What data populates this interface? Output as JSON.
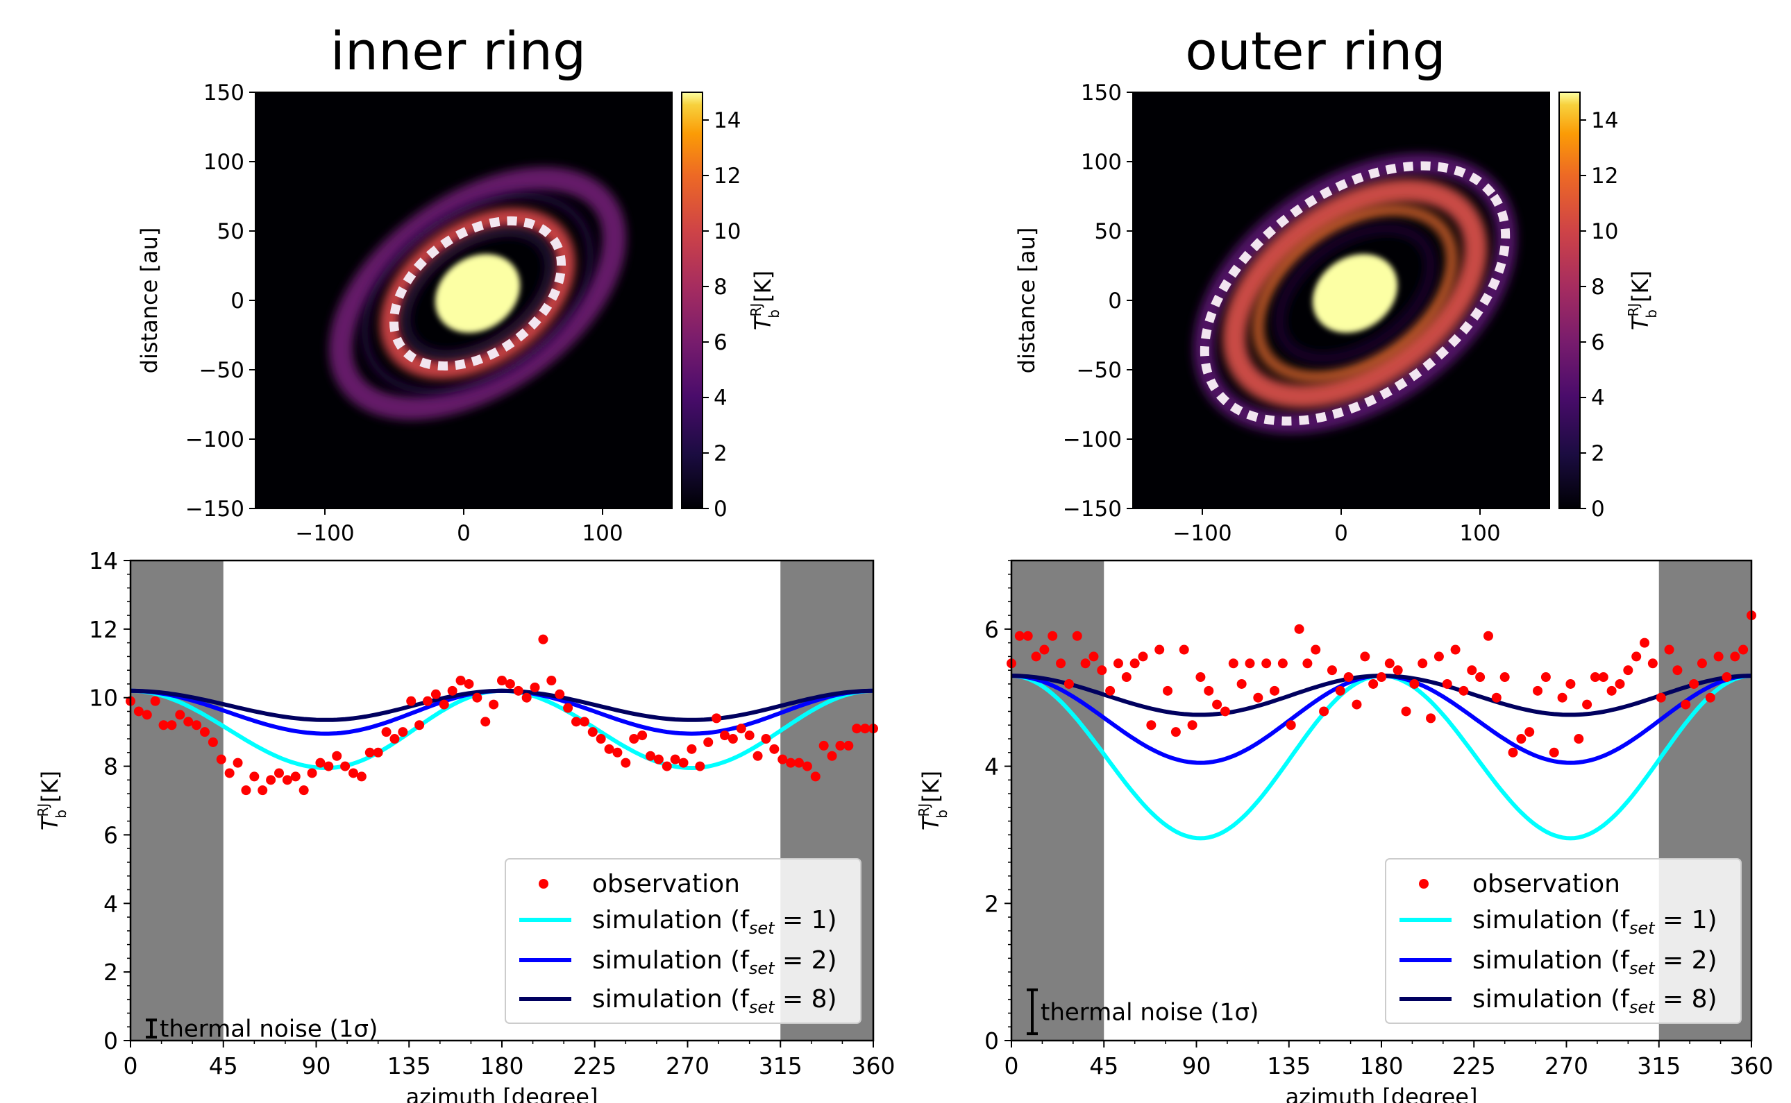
{
  "chart_data": [
    {
      "type": "heatmap",
      "title": "inner ring",
      "ylabel": "distance [au]",
      "xlim": [
        -150,
        150
      ],
      "ylim": [
        -150,
        150
      ],
      "xticks": [
        "−100",
        "0",
        "100"
      ],
      "yticks": [
        "150",
        "100",
        "50",
        "0",
        "−50",
        "−100",
        "−150"
      ],
      "colorbar": {
        "label_main": "T",
        "label_sup": "RJ",
        "label_sub": "b",
        "label_unit": " [K]",
        "range": [
          0,
          15
        ],
        "ticks": [
          "0",
          "2",
          "4",
          "6",
          "8",
          "10",
          "12",
          "14"
        ],
        "colormap": "inferno"
      },
      "ring_marker": "white dotted ellipse on inner ring"
    },
    {
      "type": "heatmap",
      "title": "outer ring",
      "ylabel": "distance [au]",
      "xlim": [
        -150,
        150
      ],
      "ylim": [
        -150,
        150
      ],
      "xticks": [
        "−100",
        "0",
        "100"
      ],
      "yticks": [
        "150",
        "100",
        "50",
        "0",
        "−50",
        "−100",
        "−150"
      ],
      "colorbar": {
        "label_main": "T",
        "label_sup": "RJ",
        "label_sub": "b",
        "label_unit": " [K]",
        "range": [
          0,
          15
        ],
        "ticks": [
          "0",
          "2",
          "4",
          "6",
          "8",
          "10",
          "12",
          "14"
        ],
        "colormap": "inferno"
      },
      "ring_marker": "white dotted ellipse on outer ring"
    },
    {
      "type": "scatter",
      "xlabel": "azimuth [degree]",
      "ylabel_main": "T",
      "ylabel_sup": "RJ",
      "ylabel_sub": "b",
      "ylabel_unit": " [K]",
      "xlim": [
        0,
        360
      ],
      "ylim": [
        0,
        14
      ],
      "xticks": [
        "0",
        "45",
        "90",
        "135",
        "180",
        "225",
        "270",
        "315",
        "360"
      ],
      "yticks": [
        "0",
        "2",
        "4",
        "6",
        "8",
        "10",
        "12",
        "14"
      ],
      "shaded_ranges": [
        [
          0,
          45
        ],
        [
          315,
          360
        ]
      ],
      "noise_label": "thermal noise (1σ)",
      "noise_halfwidth": 0.25,
      "observation": {
        "name": "observation",
        "x": [
          0,
          4,
          8,
          12,
          16,
          20,
          24,
          28,
          32,
          36,
          40,
          44,
          48,
          52,
          56,
          60,
          64,
          68,
          72,
          76,
          80,
          84,
          88,
          92,
          96,
          100,
          104,
          108,
          112,
          116,
          120,
          124,
          128,
          132,
          136,
          140,
          144,
          148,
          152,
          156,
          160,
          164,
          168,
          172,
          176,
          180,
          184,
          188,
          192,
          196,
          200,
          204,
          208,
          212,
          216,
          220,
          224,
          228,
          232,
          236,
          240,
          244,
          248,
          252,
          256,
          260,
          264,
          268,
          272,
          276,
          280,
          284,
          288,
          292,
          296,
          300,
          304,
          308,
          312,
          316,
          320,
          324,
          328,
          332,
          336,
          340,
          344,
          348,
          352,
          356,
          360
        ],
        "y": [
          9.9,
          9.6,
          9.5,
          9.9,
          9.2,
          9.2,
          9.5,
          9.3,
          9.2,
          9.0,
          8.7,
          8.2,
          7.8,
          8.1,
          7.3,
          7.7,
          7.3,
          7.6,
          7.8,
          7.6,
          7.7,
          7.3,
          7.8,
          8.1,
          8.0,
          8.3,
          8.0,
          7.8,
          7.7,
          8.4,
          8.4,
          9.0,
          8.8,
          9.0,
          9.9,
          9.2,
          9.9,
          10.1,
          9.8,
          10.2,
          10.5,
          10.4,
          10.0,
          9.3,
          9.8,
          10.5,
          10.4,
          10.2,
          10.0,
          10.3,
          11.7,
          10.5,
          10.1,
          9.7,
          9.3,
          9.3,
          9.0,
          8.8,
          8.5,
          8.4,
          8.1,
          8.8,
          8.9,
          8.3,
          8.2,
          8.0,
          8.2,
          8.1,
          8.5,
          8.0,
          8.7,
          9.4,
          8.9,
          8.8,
          9.1,
          8.9,
          8.3,
          8.8,
          8.5,
          8.2,
          8.1,
          8.1,
          8.0,
          7.7,
          8.6,
          8.3,
          8.6,
          8.6,
          9.1,
          9.1,
          9.1
        ]
      },
      "series": [
        {
          "name": "simulation (f",
          "sub": "set",
          "eq": " = 1)",
          "color": "#00ffff",
          "peak": 10.2,
          "trough": 7.95,
          "trough_pos": 95,
          "trough_pos2": 272
        },
        {
          "name": "simulation (f",
          "sub": "set",
          "eq": " = 2)",
          "color": "#0000ff",
          "peak": 10.2,
          "trough": 8.95,
          "trough_pos": 95,
          "trough_pos2": 272
        },
        {
          "name": "simulation (f",
          "sub": "set",
          "eq": " = 8)",
          "color": "#00005f",
          "peak": 10.2,
          "trough": 9.35,
          "trough_pos": 95,
          "trough_pos2": 272
        }
      ],
      "legend_position": "lower-right"
    },
    {
      "type": "scatter",
      "xlabel": "azimuth [degree]",
      "ylabel_main": "T",
      "ylabel_sup": "RJ",
      "ylabel_sub": "b",
      "ylabel_unit": " [K]",
      "xlim": [
        0,
        360
      ],
      "ylim": [
        0,
        7
      ],
      "xticks": [
        "0",
        "45",
        "90",
        "135",
        "180",
        "225",
        "270",
        "315",
        "360"
      ],
      "yticks": [
        "0",
        "2",
        "4",
        "6"
      ],
      "shaded_ranges": [
        [
          0,
          45
        ],
        [
          315,
          360
        ]
      ],
      "noise_label": "thermal noise (1σ)",
      "noise_halfwidth": 0.32,
      "observation": {
        "name": "observation",
        "x": [
          0,
          4,
          8,
          12,
          16,
          20,
          24,
          28,
          32,
          36,
          40,
          44,
          48,
          52,
          56,
          60,
          64,
          68,
          72,
          76,
          80,
          84,
          88,
          92,
          96,
          100,
          104,
          108,
          112,
          116,
          120,
          124,
          128,
          132,
          136,
          140,
          144,
          148,
          152,
          156,
          160,
          164,
          168,
          172,
          176,
          180,
          184,
          188,
          192,
          196,
          200,
          204,
          208,
          212,
          216,
          220,
          224,
          228,
          232,
          236,
          240,
          244,
          248,
          252,
          256,
          260,
          264,
          268,
          272,
          276,
          280,
          284,
          288,
          292,
          296,
          300,
          304,
          308,
          312,
          316,
          320,
          324,
          328,
          332,
          336,
          340,
          344,
          348,
          352,
          356,
          360
        ],
        "y": [
          5.5,
          5.9,
          5.9,
          5.6,
          5.7,
          5.9,
          5.5,
          5.2,
          5.9,
          5.5,
          5.6,
          5.4,
          5.1,
          5.5,
          5.3,
          5.5,
          5.6,
          4.6,
          5.7,
          5.1,
          4.5,
          5.7,
          4.6,
          5.3,
          5.1,
          4.9,
          4.8,
          5.5,
          5.2,
          5.5,
          5.0,
          5.5,
          5.1,
          5.5,
          4.6,
          6.0,
          5.5,
          5.7,
          4.8,
          5.4,
          5.1,
          5.3,
          4.9,
          5.6,
          5.2,
          5.3,
          5.5,
          5.4,
          4.8,
          5.2,
          5.5,
          4.7,
          5.6,
          5.2,
          5.7,
          5.1,
          5.4,
          5.3,
          5.9,
          5.0,
          5.3,
          4.2,
          4.4,
          4.5,
          5.1,
          5.3,
          4.2,
          5.0,
          5.2,
          4.4,
          4.9,
          5.3,
          5.3,
          5.1,
          5.2,
          5.4,
          5.6,
          5.8,
          5.5,
          5.0,
          5.7,
          5.4,
          4.9,
          5.2,
          5.5,
          5.0,
          5.6,
          5.3,
          5.6,
          5.7,
          6.2
        ]
      },
      "series": [
        {
          "name": "simulation (f",
          "sub": "set",
          "eq": " = 1)",
          "color": "#00ffff",
          "peak": 5.32,
          "trough": 2.95,
          "trough_pos": 92,
          "trough_pos2": 272
        },
        {
          "name": "simulation (f",
          "sub": "set",
          "eq": " = 2)",
          "color": "#0000ff",
          "peak": 5.32,
          "trough": 4.05,
          "trough_pos": 92,
          "trough_pos2": 272
        },
        {
          "name": "simulation (f",
          "sub": "set",
          "eq": " = 8)",
          "color": "#00005f",
          "peak": 5.32,
          "trough": 4.75,
          "trough_pos": 92,
          "trough_pos2": 272
        }
      ],
      "legend_position": "lower-right"
    }
  ]
}
